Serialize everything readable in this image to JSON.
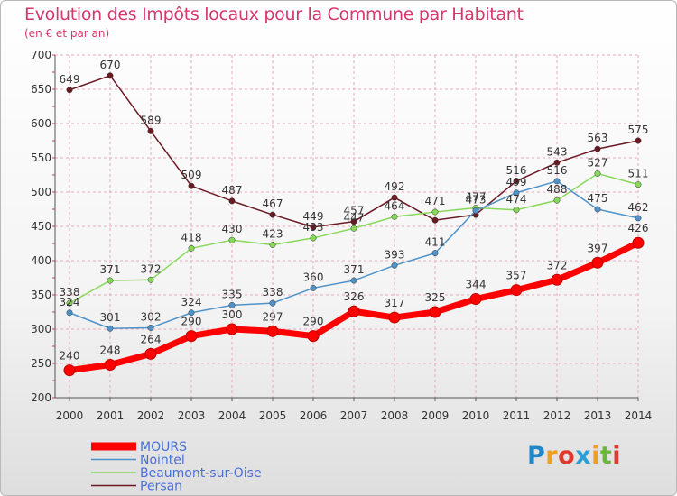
{
  "title": "Evolution des Impôts locaux pour la Commune par Habitant",
  "subtitle": "(en € et par an)",
  "logo": {
    "letters": [
      {
        "char": "P",
        "color": "#1e88c8"
      },
      {
        "char": "r",
        "color": "#f0a020"
      },
      {
        "char": "o",
        "color": "#e03a2e"
      },
      {
        "char": "x",
        "color": "#2b9ed8"
      },
      {
        "char": "i",
        "color": "#f0a020"
      },
      {
        "char": "t",
        "color": "#6cb63c"
      },
      {
        "char": "i",
        "color": "#e03a2e"
      }
    ]
  },
  "colors": {
    "grid": "#e8a9bb",
    "axis": "#555555",
    "tick": "#d6376a"
  },
  "chart_data": {
    "type": "line",
    "title": "Evolution des Impôts locaux pour la Commune par Habitant",
    "ylabel": "(en € et par an)",
    "xlabel": "",
    "ylim": [
      200,
      700
    ],
    "yticks": [
      200,
      250,
      300,
      350,
      400,
      450,
      500,
      550,
      600,
      650,
      700
    ],
    "categories": [
      "2000",
      "2001",
      "2002",
      "2003",
      "2004",
      "2005",
      "2006",
      "2007",
      "2008",
      "2009",
      "2010",
      "2011",
      "2012",
      "2013",
      "2014"
    ],
    "series": [
      {
        "name": "Persan",
        "color": "#6b1a24",
        "values": [
          649,
          670,
          589,
          509,
          487,
          467,
          449,
          457,
          492,
          459,
          467,
          516,
          543,
          563,
          575
        ],
        "labels": [
          "649",
          "670",
          "589",
          "509",
          "487",
          "467",
          "449",
          "457",
          "492",
          "",
          "",
          "516",
          "543",
          "563",
          "575"
        ]
      },
      {
        "name": "Beaumont-sur-Oise",
        "color": "#88d85a",
        "values": [
          338,
          371,
          372,
          418,
          430,
          423,
          433,
          447,
          464,
          471,
          477,
          474,
          488,
          527,
          511
        ],
        "labels": [
          "338",
          "371",
          "372",
          "418",
          "430",
          "423",
          "433",
          "447",
          "464",
          "471",
          "477",
          "474",
          "488",
          "527",
          "511"
        ]
      },
      {
        "name": "Nointel",
        "color": "#4f93c9",
        "values": [
          324,
          301,
          302,
          324,
          335,
          338,
          360,
          371,
          393,
          411,
          473,
          499,
          516,
          475,
          462
        ],
        "labels": [
          "324",
          "301",
          "302",
          "324",
          "335",
          "338",
          "360",
          "371",
          "393",
          "411",
          "473",
          "499",
          "516",
          "475",
          "462"
        ]
      },
      {
        "name": "MOURS",
        "color": "#ff0000",
        "values": [
          240,
          248,
          264,
          290,
          300,
          297,
          290,
          326,
          317,
          325,
          344,
          357,
          372,
          397,
          426
        ],
        "labels": [
          "240",
          "248",
          "264",
          "290",
          "300",
          "297",
          "290",
          "326",
          "317",
          "325",
          "344",
          "357",
          "372",
          "397",
          "426"
        ]
      }
    ],
    "legend": [
      {
        "name": "MOURS",
        "color": "#ff0000",
        "thick": true
      },
      {
        "name": "Nointel",
        "color": "#4f93c9",
        "thick": false
      },
      {
        "name": "Beaumont-sur-Oise",
        "color": "#88d85a",
        "thick": false
      },
      {
        "name": "Persan",
        "color": "#6b1a24",
        "thick": false
      }
    ],
    "legend_position": "bottom-left",
    "grid": true
  }
}
